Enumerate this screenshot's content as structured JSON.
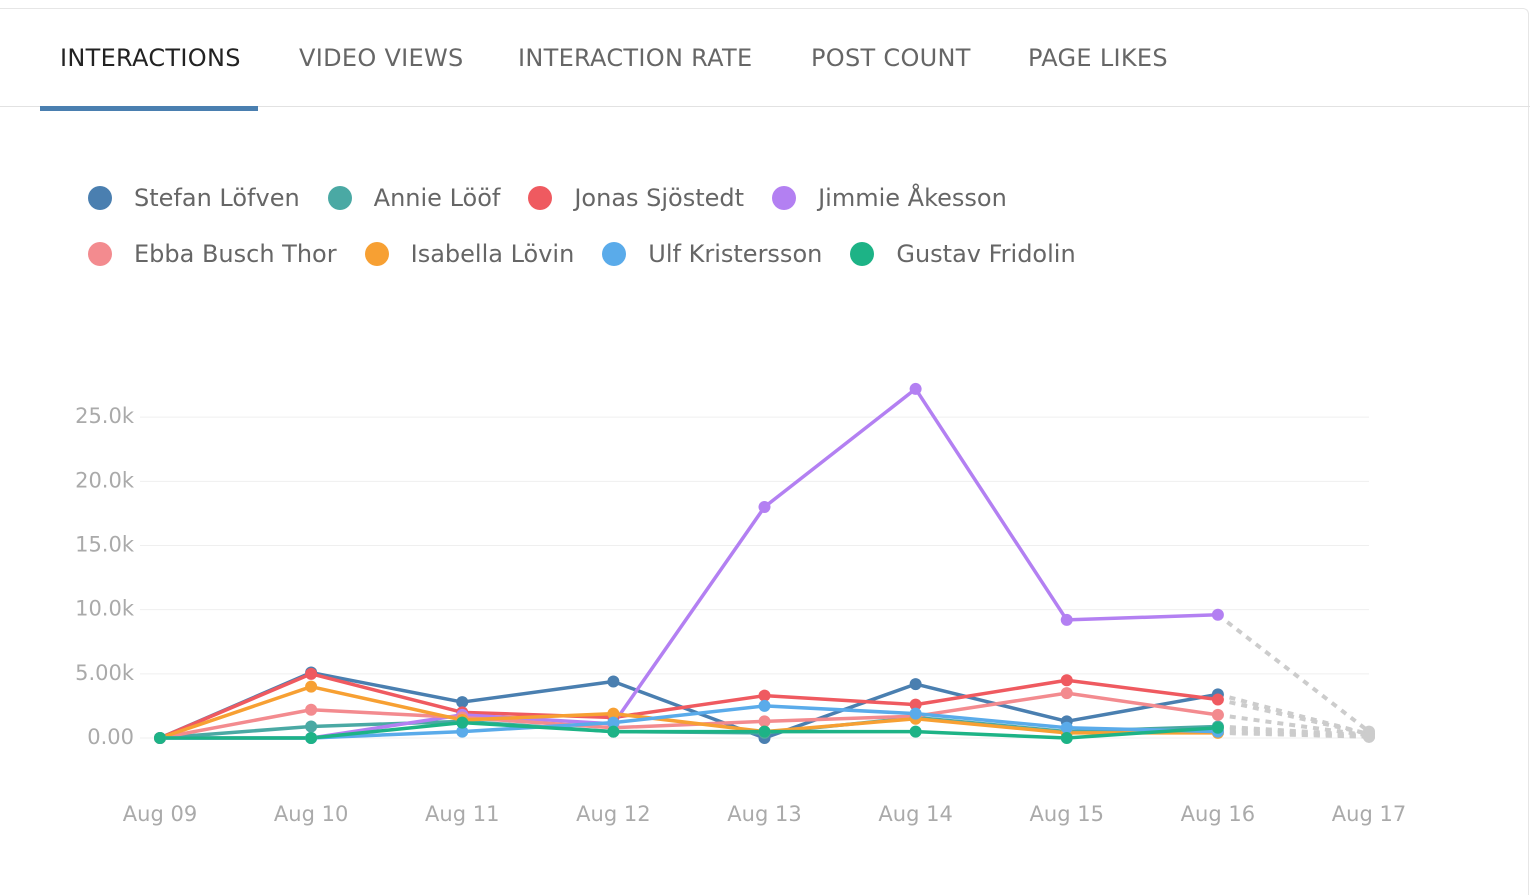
{
  "tabs": [
    {
      "label": "INTERACTIONS",
      "active": true
    },
    {
      "label": "VIDEO VIEWS",
      "active": false
    },
    {
      "label": "INTERACTION RATE",
      "active": false
    },
    {
      "label": "POST COUNT",
      "active": false
    },
    {
      "label": "PAGE LIKES",
      "active": false
    }
  ],
  "chart_data": {
    "type": "line",
    "categories": [
      "Aug 09",
      "Aug 10",
      "Aug 11",
      "Aug 12",
      "Aug 13",
      "Aug 14",
      "Aug 15",
      "Aug 16",
      "Aug 17"
    ],
    "series": [
      {
        "name": "Stefan Löfven",
        "color": "#4a7fb0",
        "values": [
          0,
          5100,
          2800,
          4400,
          0,
          4200,
          1300,
          3400,
          300
        ]
      },
      {
        "name": "Annie Lööf",
        "color": "#4aa9a4",
        "values": [
          0,
          900,
          1300,
          500,
          400,
          1600,
          500,
          900,
          200
        ]
      },
      {
        "name": "Jonas Sjöstedt",
        "color": "#ef5a60",
        "values": [
          0,
          5000,
          2000,
          1600,
          3300,
          2600,
          4500,
          3000,
          300
        ]
      },
      {
        "name": "Jimmie Åkesson",
        "color": "#b380f2",
        "values": [
          0,
          0,
          1800,
          1100,
          18000,
          27200,
          9200,
          9600,
          500
        ]
      },
      {
        "name": "Ebba Busch Thor",
        "color": "#f38b8f",
        "values": [
          0,
          2200,
          1600,
          800,
          1300,
          1700,
          3500,
          1800,
          200
        ]
      },
      {
        "name": "Isabella Lövin",
        "color": "#f7a033",
        "values": [
          0,
          4000,
          1400,
          1900,
          500,
          1500,
          400,
          400,
          100
        ]
      },
      {
        "name": "Ulf Kristersson",
        "color": "#5aabea",
        "values": [
          0,
          0,
          500,
          1200,
          2500,
          1900,
          800,
          500,
          100
        ]
      },
      {
        "name": "Gustav Fridolin",
        "color": "#1db386",
        "values": [
          0,
          0,
          1200,
          500,
          500,
          500,
          0,
          800,
          100
        ]
      }
    ],
    "ylim": [
      0,
      30000
    ],
    "yticks": [
      {
        "value": 0,
        "label": "0.00"
      },
      {
        "value": 5000,
        "label": "5.00k"
      },
      {
        "value": 10000,
        "label": "10.0k"
      },
      {
        "value": 15000,
        "label": "15.0k"
      },
      {
        "value": 20000,
        "label": "20.0k"
      },
      {
        "value": 25000,
        "label": "25.0k"
      }
    ],
    "grid": true,
    "forecast_last_point": true,
    "forecast_color": "#cccccc"
  }
}
